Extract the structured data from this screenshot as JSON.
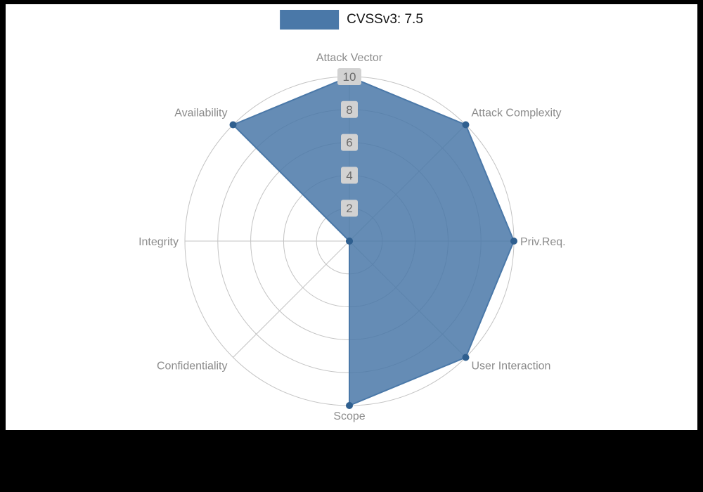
{
  "page": {
    "background": "#000000",
    "canvas_background": "#ffffff"
  },
  "legend": {
    "label": "CVSSv3: 7.5",
    "swatch_color": "#4a78a8"
  },
  "chart_data": {
    "type": "radar",
    "title": "CVSSv3: 7.5",
    "legend_position": "top-center",
    "grid": true,
    "rmax": 10,
    "radial_ticks": [
      2,
      4,
      6,
      8,
      10
    ],
    "axes": [
      "Attack Vector",
      "Attack Complexity",
      "Priv.Req.",
      "User Interaction",
      "Scope",
      "Confidentiality",
      "Integrity",
      "Availability"
    ],
    "series": [
      {
        "name": "CVSSv3: 7.5",
        "values": [
          10,
          10,
          10,
          10,
          10,
          0,
          0,
          10
        ]
      }
    ],
    "colors": {
      "fill": "#4a78a8",
      "fill_opacity": 0.85,
      "marker": "#2f5f8f",
      "grid": "#c3c3c3",
      "axis_label": "#8c8c8c",
      "tick_text": "#6b6b6b",
      "tick_box": "#d2d2d2"
    }
  }
}
